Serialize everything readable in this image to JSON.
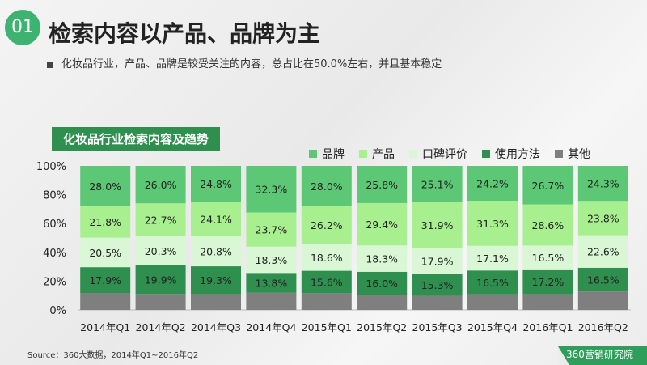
{
  "header": {
    "badge": "01",
    "title": "检索内容以产品、品牌为主"
  },
  "subtitle": "化妆品行业，产品、品牌是较受关注的内容，总占比在50.0%左右，并且基本稳定",
  "chart_tag": "化妆品行业检索内容及趋势",
  "source": "Source：360大数据，2014年Q1~2016年Q2",
  "footer_logo": "360营销研究院",
  "chart_data": {
    "type": "bar",
    "stacked": "percent",
    "categories": [
      "2014年Q1",
      "2014年Q2",
      "2014年Q3",
      "2014年Q4",
      "2015年Q1",
      "2015年Q2",
      "2015年Q3",
      "2015年Q4",
      "2016年Q1",
      "2016年Q2"
    ],
    "y_ticks": [
      "0%",
      "20%",
      "40%",
      "60%",
      "80%",
      "100%"
    ],
    "ylim": [
      0,
      100
    ],
    "legend_position": "top-right",
    "series": [
      {
        "name": "其他",
        "color": "#7f7f7f",
        "values": [
          11.8,
          11.1,
          11.0,
          11.9,
          11.6,
          10.5,
          9.8,
          10.9,
          11.0,
          12.8
        ],
        "labels": [
          "",
          "",
          "",
          "",
          "",
          "",
          "",
          "",
          "",
          ""
        ]
      },
      {
        "name": "使用方法",
        "color": "#2f8f4f",
        "values": [
          17.9,
          19.9,
          19.3,
          13.8,
          15.6,
          16.0,
          15.3,
          16.5,
          17.2,
          16.5
        ],
        "labels": [
          "17.9%",
          "19.9%",
          "19.3%",
          "13.8%",
          "15.6%",
          "16.0%",
          "15.3%",
          "16.5%",
          "17.2%",
          "16.5%"
        ]
      },
      {
        "name": "口碑评价",
        "color": "#d9f7d4",
        "values": [
          20.5,
          20.3,
          20.8,
          18.3,
          18.6,
          18.3,
          17.9,
          17.1,
          16.5,
          22.6
        ],
        "labels": [
          "20.5%",
          "20.3%",
          "20.8%",
          "18.3%",
          "18.6%",
          "18.3%",
          "17.9%",
          "17.1%",
          "16.5%",
          "22.6%"
        ]
      },
      {
        "name": "产品",
        "color": "#a8f08f",
        "values": [
          21.8,
          22.7,
          24.1,
          23.7,
          26.2,
          29.4,
          31.9,
          31.3,
          28.6,
          23.8
        ],
        "labels": [
          "21.8%",
          "22.7%",
          "24.1%",
          "23.7%",
          "26.2%",
          "29.4%",
          "31.9%",
          "31.3%",
          "28.6%",
          "23.8%"
        ]
      },
      {
        "name": "品牌",
        "color": "#5cc774",
        "values": [
          28.0,
          26.0,
          24.8,
          32.3,
          28.0,
          25.8,
          25.1,
          24.2,
          26.7,
          24.3
        ],
        "labels": [
          "28.0%",
          "26.0%",
          "24.8%",
          "32.3%",
          "28.0%",
          "25.8%",
          "25.1%",
          "24.2%",
          "26.7%",
          "24.3%"
        ]
      }
    ]
  },
  "legend_order": [
    "品牌",
    "产品",
    "口碑评价",
    "使用方法",
    "其他"
  ]
}
